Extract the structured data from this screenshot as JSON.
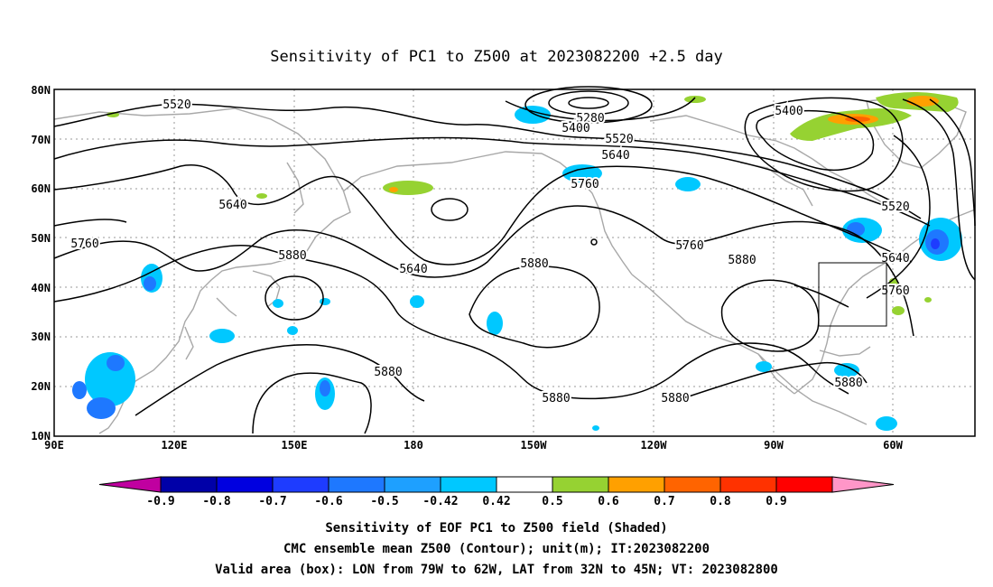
{
  "title": "Sensitivity of PC1 to Z500 at 2023082200 +2.5 day",
  "axes": {
    "lat_labels": [
      "80N",
      "70N",
      "60N",
      "50N",
      "40N",
      "30N",
      "20N",
      "10N"
    ],
    "lon_labels": [
      "90E",
      "120E",
      "150E",
      "180",
      "150W",
      "120W",
      "90W",
      "60W"
    ]
  },
  "contour_labels": {
    "c5520a": "5520",
    "c5280": "5280",
    "c5400a": "5400",
    "c5520b": "5520",
    "c5640a": "5640",
    "c5400b": "5400",
    "c5640b": "5640",
    "c5760a": "5760",
    "c5520c": "5520",
    "c5760b": "5760",
    "c5640c": "5640",
    "c5880a": "5880",
    "c5880b": "5880",
    "c5760c": "5760",
    "c5880c": "5880",
    "c5640d": "5640",
    "c5760d": "5760",
    "c5880d": "5880",
    "c5880e": "5880",
    "c5880f": "5880",
    "c5880g": "5880"
  },
  "colorbar": {
    "labels": [
      "-0.9",
      "-0.8",
      "-0.7",
      "-0.6",
      "-0.5",
      "-0.42",
      "0.42",
      "0.5",
      "0.6",
      "0.7",
      "0.8",
      "0.9"
    ],
    "colors": [
      "#c000a0",
      "#0000a8",
      "#0000e0",
      "#1e3cff",
      "#1e78ff",
      "#1ea0ff",
      "#00c8ff",
      "#ffffff",
      "#96d232",
      "#ffa000",
      "#ff6400",
      "#ff3200",
      "#ff0000",
      "#ff96c8"
    ]
  },
  "valid_box": {
    "lon_w": -79,
    "lon_e": -62,
    "lat_s": 32,
    "lat_n": 45
  },
  "captions": {
    "line1": "Sensitivity of EOF PC1 to Z500 field (Shaded)",
    "line2": "CMC ensemble mean Z500 (Contour); unit(m); IT:2023082200",
    "line3": "Valid area (box): LON from 79W to 62W, LAT from 32N to 45N; VT: 2023082800"
  }
}
